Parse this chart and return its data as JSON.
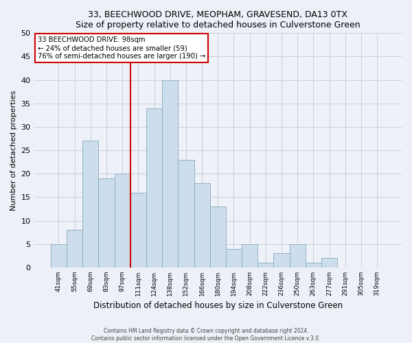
{
  "title1": "33, BEECHWOOD DRIVE, MEOPHAM, GRAVESEND, DA13 0TX",
  "title2": "Size of property relative to detached houses in Culverstone Green",
  "xlabel": "Distribution of detached houses by size in Culverstone Green",
  "ylabel": "Number of detached properties",
  "bar_labels": [
    "41sqm",
    "55sqm",
    "69sqm",
    "83sqm",
    "97sqm",
    "111sqm",
    "124sqm",
    "138sqm",
    "152sqm",
    "166sqm",
    "180sqm",
    "194sqm",
    "208sqm",
    "222sqm",
    "236sqm",
    "250sqm",
    "263sqm",
    "277sqm",
    "291sqm",
    "305sqm",
    "319sqm"
  ],
  "bar_values": [
    5,
    8,
    27,
    19,
    20,
    16,
    34,
    40,
    23,
    18,
    13,
    4,
    5,
    1,
    3,
    5,
    1,
    2,
    0,
    0,
    0
  ],
  "bar_color": "#ccdded",
  "bar_edgecolor": "#8aaabb",
  "vline_index": 4,
  "annotation_title": "33 BEECHWOOD DRIVE: 98sqm",
  "annotation_line1": "← 24% of detached houses are smaller (59)",
  "annotation_line2": "76% of semi-detached houses are larger (190) →",
  "vline_color": "#cc0000",
  "box_edgecolor": "#cc0000",
  "ylim": [
    0,
    50
  ],
  "yticks": [
    0,
    5,
    10,
    15,
    20,
    25,
    30,
    35,
    40,
    45,
    50
  ],
  "footer1": "Contains HM Land Registry data © Crown copyright and database right 2024.",
  "footer2": "Contains public sector information licensed under the Open Government Licence v.3.0.",
  "bg_color": "#eef0f8",
  "plot_bg_color": "#eef2f8",
  "grid_color": "#c8ccd8"
}
